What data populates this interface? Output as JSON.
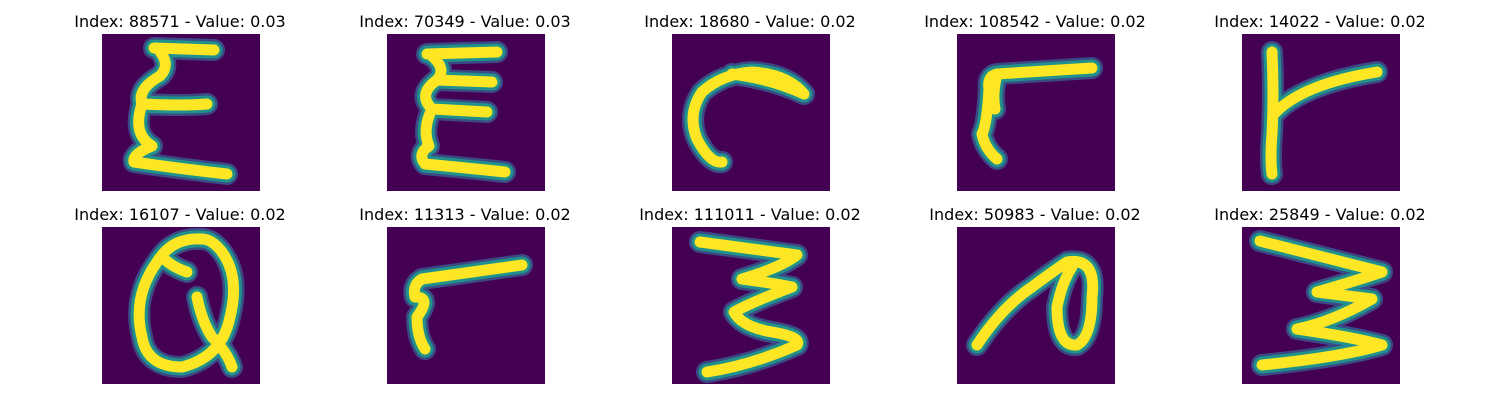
{
  "colors": {
    "background": "#440154",
    "stroke": "#fde725",
    "edge": "#21918c",
    "edge_outer": "#3b528b"
  },
  "panels": [
    {
      "title": "Index: 88571 - Value: 0.03"
    },
    {
      "title": "Index: 70349 - Value: 0.03"
    },
    {
      "title": "Index: 18680 - Value: 0.02"
    },
    {
      "title": "Index: 108542 - Value: 0.02"
    },
    {
      "title": "Index: 14022 - Value: 0.02"
    },
    {
      "title": "Index: 16107 - Value: 0.02"
    },
    {
      "title": "Index: 11313 - Value: 0.02"
    },
    {
      "title": "Index: 111011 - Value: 0.02"
    },
    {
      "title": "Index: 50983 - Value: 0.02"
    },
    {
      "title": "Index: 25849 - Value: 0.02"
    }
  ]
}
